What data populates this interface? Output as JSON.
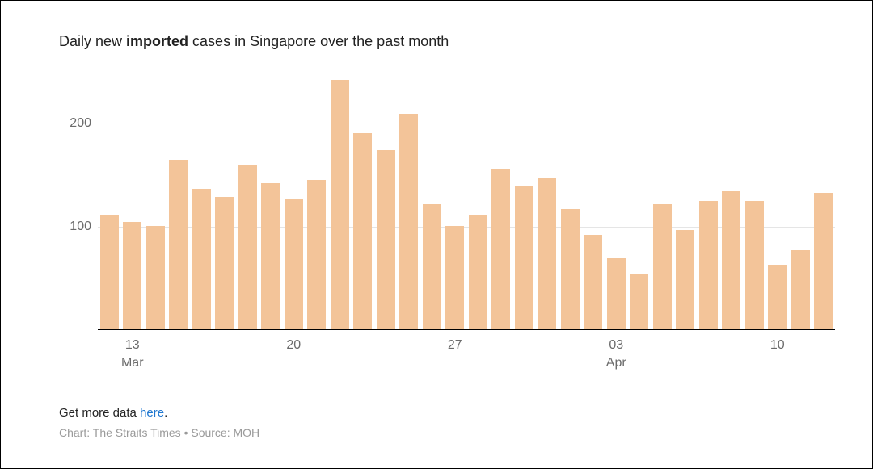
{
  "title_prefix": "Daily new ",
  "title_bold": "imported",
  "title_suffix": " cases in Singapore over the past month",
  "footer_more_prefix": "Get more data ",
  "footer_more_link": "here",
  "footer_more_suffix": ".",
  "footer_source": "Chart: The Straits Times • Source: MOH",
  "chart": {
    "type": "bar",
    "bar_color": "#f3c499",
    "background_color": "#ffffff",
    "grid_color": "#e5e5e5",
    "axis_color": "#000000",
    "tick_label_color": "#6b6b6b",
    "title_fontsize": 18,
    "tick_fontsize": 16,
    "ylim": [
      0,
      250
    ],
    "yticks": [
      100,
      200
    ],
    "ytick_labels": [
      "100",
      "200"
    ],
    "bar_gap_ratio": 0.18,
    "values": [
      112,
      105,
      101,
      165,
      137,
      129,
      159,
      142,
      127,
      145,
      242,
      191,
      174,
      209,
      122,
      101,
      112,
      156,
      140,
      147,
      117,
      92,
      70,
      54,
      122,
      97,
      125,
      134,
      125,
      63,
      77,
      133
    ],
    "xticks": [
      {
        "index": 1,
        "label_top": "13",
        "label_bottom": "Mar"
      },
      {
        "index": 8,
        "label_top": "20",
        "label_bottom": ""
      },
      {
        "index": 15,
        "label_top": "27",
        "label_bottom": ""
      },
      {
        "index": 22,
        "label_top": "03",
        "label_bottom": "Apr"
      },
      {
        "index": 29,
        "label_top": "10",
        "label_bottom": ""
      }
    ]
  }
}
